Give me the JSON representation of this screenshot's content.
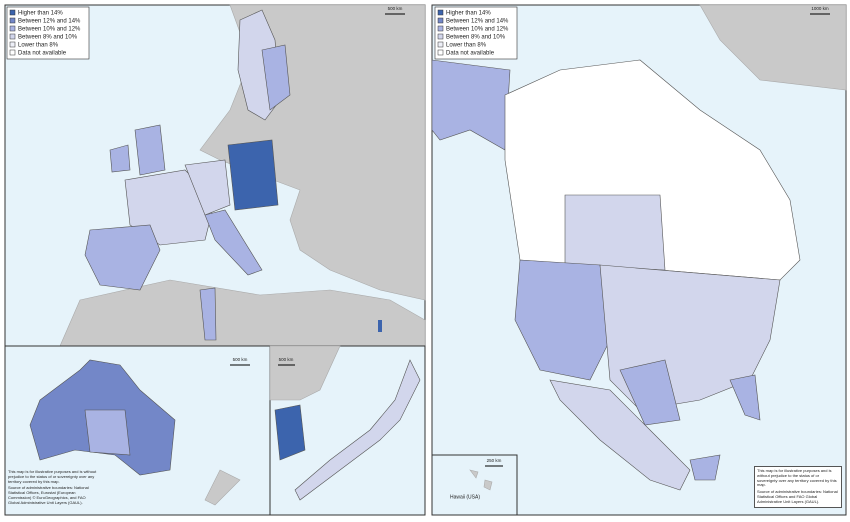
{
  "europe": {
    "legend": [
      {
        "label": "Higher than 14%",
        "color": "#3c64ad"
      },
      {
        "label": "Between 12% and 14%",
        "color": "#7387c8"
      },
      {
        "label": "Between 10% and 12%",
        "color": "#a9b3e3"
      },
      {
        "label": "Between 8% and 10%",
        "color": "#d2d6ec"
      },
      {
        "label": "Lower than 8%",
        "color": "#eef0f8"
      },
      {
        "label": "Data not available",
        "color": "#ffffff"
      }
    ],
    "scale": "500 km"
  },
  "australia": {
    "scale": "500 km",
    "note": "This map is for illustrative purposes and is without prejudice to the status of or sovereignty over any territory covered by this map.",
    "source": "Source of administrative boundaries: National Statistical Offices, Eurostat (European Commission) © EuroGeographics, and FAO Global Administrative Unit Layers (GAUL)."
  },
  "korea_japan": {
    "scale": "500 km"
  },
  "north_america": {
    "legend": [
      {
        "label": "Higher than 14%",
        "color": "#3c64ad"
      },
      {
        "label": "Between 12% and 14%",
        "color": "#7387c8"
      },
      {
        "label": "Between 10% and 12%",
        "color": "#a9b3e3"
      },
      {
        "label": "Between 8% and 10%",
        "color": "#d2d6ec"
      },
      {
        "label": "Lower than 8%",
        "color": "#eef0f8"
      },
      {
        "label": "Data not available",
        "color": "#ffffff"
      }
    ],
    "scale": "1000 km",
    "hawaii_label": "Hawaii (USA)",
    "hawaii_scale": "250 km",
    "note": "This map is for illustrative purposes and is without prejudice to the status of or sovereignty over any territory covered by this map.",
    "source": "Source of administrative boundaries: National Statistical Offices and FAO Global Administrative Unit Layers (GAUL)."
  }
}
